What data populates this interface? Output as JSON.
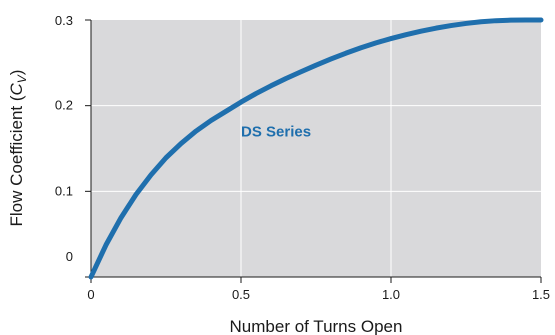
{
  "chart_data": {
    "type": "line",
    "xlabel": "Number of Turns Open",
    "ylabel": "Flow Coefficient (Cv)",
    "ylabel_main": "Flow Coefficient (",
    "ylabel_var": "C",
    "ylabel_sub": "V",
    "ylabel_close": ")",
    "xlim": [
      0,
      1.5
    ],
    "ylim": [
      0,
      0.3
    ],
    "x_ticks": [
      0,
      0.5,
      1.0,
      1.5
    ],
    "x_tick_labels": [
      "0",
      "0.5",
      "1.0",
      "1.5"
    ],
    "y_ticks": [
      0,
      0.1,
      0.2,
      0.3
    ],
    "y_tick_labels": [
      "0",
      "0.1",
      "0.2",
      "0.3"
    ],
    "grid": true,
    "plot_background": "#d9d9db",
    "grid_color": "#ffffff",
    "series": [
      {
        "name": "DS Series",
        "color": "#1f6fad",
        "label_at": [
          0.5,
          0.17
        ],
        "x": [
          0,
          0.05,
          0.1,
          0.15,
          0.2,
          0.25,
          0.3,
          0.35,
          0.4,
          0.45,
          0.5,
          0.55,
          0.6,
          0.65,
          0.7,
          0.75,
          0.8,
          0.85,
          0.9,
          0.95,
          1.0,
          1.05,
          1.1,
          1.15,
          1.2,
          1.25,
          1.3,
          1.35,
          1.4,
          1.45,
          1.5
        ],
        "y": [
          0.0,
          0.0375,
          0.0692,
          0.0963,
          0.1192,
          0.1392,
          0.1558,
          0.1703,
          0.1827,
          0.1934,
          0.2042,
          0.2141,
          0.2232,
          0.2317,
          0.2396,
          0.2473,
          0.2545,
          0.2613,
          0.2676,
          0.2733,
          0.2783,
          0.2829,
          0.287,
          0.2905,
          0.2935,
          0.296,
          0.298,
          0.2992,
          0.2998,
          0.3,
          0.3
        ]
      }
    ]
  }
}
